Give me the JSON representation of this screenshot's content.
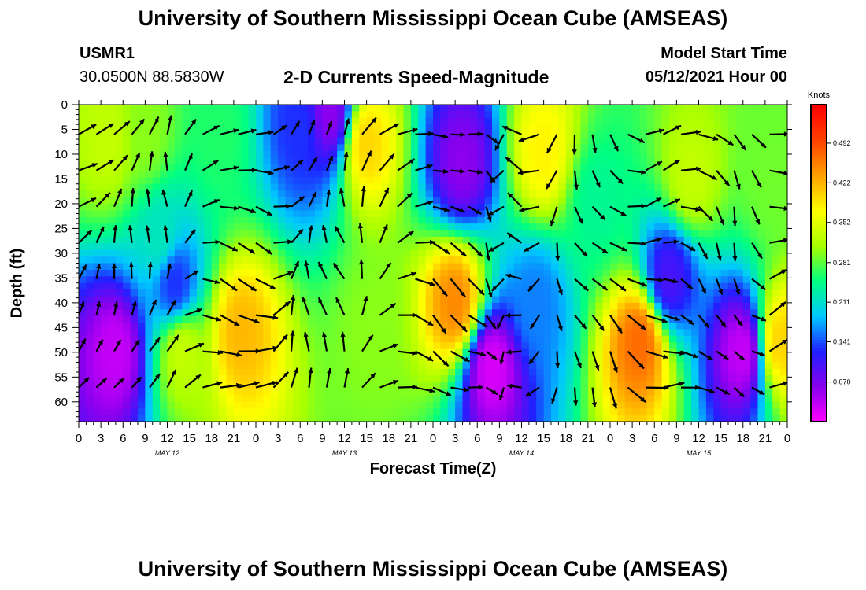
{
  "header": {
    "title": "University of Southern Mississippi Ocean Cube (AMSEAS)",
    "station": "USMR1",
    "coords": "30.0500N  88.5830W",
    "subtitle": "2-D Currents Speed-Magnitude",
    "model_start_label": "Model Start Time",
    "model_start_value": "05/12/2021 Hour 00"
  },
  "footer": {
    "title": "University of Southern Mississippi Ocean Cube (AMSEAS)"
  },
  "chart_data": {
    "type": "heatmap",
    "title": "2-D Currents Speed-Magnitude",
    "xlabel": "Forecast Time(Z)",
    "ylabel": "Depth (ft)",
    "x_ticks": [
      "0",
      "3",
      "6",
      "9",
      "12",
      "15",
      "18",
      "21",
      "0",
      "3",
      "6",
      "9",
      "12",
      "15",
      "18",
      "21",
      "0",
      "3",
      "6",
      "9",
      "12",
      "15",
      "18",
      "21",
      "0",
      "3",
      "6",
      "9",
      "12",
      "15",
      "18",
      "21",
      "0"
    ],
    "day_labels": [
      "MAY 12",
      "MAY 13",
      "MAY 14",
      "MAY 15"
    ],
    "xlim_hours": [
      0,
      96
    ],
    "y_ticks": [
      0,
      5,
      10,
      15,
      20,
      25,
      30,
      35,
      40,
      45,
      50,
      55,
      60
    ],
    "ylim": [
      0,
      64
    ],
    "y_inverted": true,
    "colorbar": {
      "label": "Knots",
      "ticks": [
        0.07,
        0.141,
        0.211,
        0.281,
        0.352,
        0.422,
        0.492
      ],
      "tick_labels": [
        "0.070",
        "0.141",
        "0.211",
        "0.281",
        "0.352",
        "0.422",
        "0.492"
      ],
      "range": [
        0,
        0.56
      ],
      "colors": [
        "#ff00ff",
        "#8800ee",
        "#2020ff",
        "#00c8ff",
        "#00ff80",
        "#a8ff00",
        "#ffff00",
        "#ffa000",
        "#ff4000",
        "#ff0000"
      ]
    },
    "speed_blobs": [
      {
        "t": 4,
        "d": 8,
        "v": 0.33
      },
      {
        "t": 9,
        "d": 6,
        "v": 0.3
      },
      {
        "t": 19,
        "d": 6,
        "v": 0.26
      },
      {
        "t": 11,
        "d": 27,
        "v": 0.22
      },
      {
        "t": 13,
        "d": 36,
        "v": 0.13
      },
      {
        "t": 5,
        "d": 50,
        "v": 0.03
      },
      {
        "t": 14,
        "d": 50,
        "v": 0.33
      },
      {
        "t": 22,
        "d": 46,
        "v": 0.42
      },
      {
        "t": 30,
        "d": 5,
        "v": 0.13
      },
      {
        "t": 34,
        "d": 2,
        "v": 0.06
      },
      {
        "t": 39,
        "d": 8,
        "v": 0.4
      },
      {
        "t": 40,
        "d": 45,
        "v": 0.3
      },
      {
        "t": 52,
        "d": 12,
        "v": 0.06
      },
      {
        "t": 51,
        "d": 40,
        "v": 0.45
      },
      {
        "t": 56,
        "d": 53,
        "v": 0.02
      },
      {
        "t": 63,
        "d": 10,
        "v": 0.38
      },
      {
        "t": 62,
        "d": 40,
        "v": 0.16
      },
      {
        "t": 70,
        "d": 20,
        "v": 0.24
      },
      {
        "t": 76,
        "d": 48,
        "v": 0.47
      },
      {
        "t": 80,
        "d": 35,
        "v": 0.1
      },
      {
        "t": 83,
        "d": 15,
        "v": 0.33
      },
      {
        "t": 90,
        "d": 50,
        "v": 0.03
      },
      {
        "t": 94,
        "d": 15,
        "v": 0.29
      },
      {
        "t": 95,
        "d": 48,
        "v": 0.4
      }
    ],
    "vectors": [
      {
        "t": 0,
        "dir_deg": 45,
        "mag": 0.2
      },
      {
        "t": 6,
        "dir_deg": 20,
        "mag": 0.25
      },
      {
        "t": 12,
        "dir_deg": 10,
        "mag": 0.25
      },
      {
        "t": 18,
        "dir_deg": 100,
        "mag": 0.2
      },
      {
        "t": 24,
        "dir_deg": 100,
        "mag": 0.2
      },
      {
        "t": 30,
        "dir_deg": 10,
        "mag": 0.35
      },
      {
        "t": 36,
        "dir_deg": 350,
        "mag": 0.35
      },
      {
        "t": 42,
        "dir_deg": 60,
        "mag": 0.3
      },
      {
        "t": 48,
        "dir_deg": 120,
        "mag": 0.35
      },
      {
        "t": 54,
        "dir_deg": 110,
        "mag": 0.4
      },
      {
        "t": 60,
        "dir_deg": 290,
        "mag": 0.35
      },
      {
        "t": 66,
        "dir_deg": 160,
        "mag": 0.3
      },
      {
        "t": 72,
        "dir_deg": 140,
        "mag": 0.45
      },
      {
        "t": 78,
        "dir_deg": 70,
        "mag": 0.25
      },
      {
        "t": 84,
        "dir_deg": 130,
        "mag": 0.35
      },
      {
        "t": 90,
        "dir_deg": 160,
        "mag": 0.25
      },
      {
        "t": 96,
        "dir_deg": 20,
        "mag": 0.3
      }
    ]
  }
}
